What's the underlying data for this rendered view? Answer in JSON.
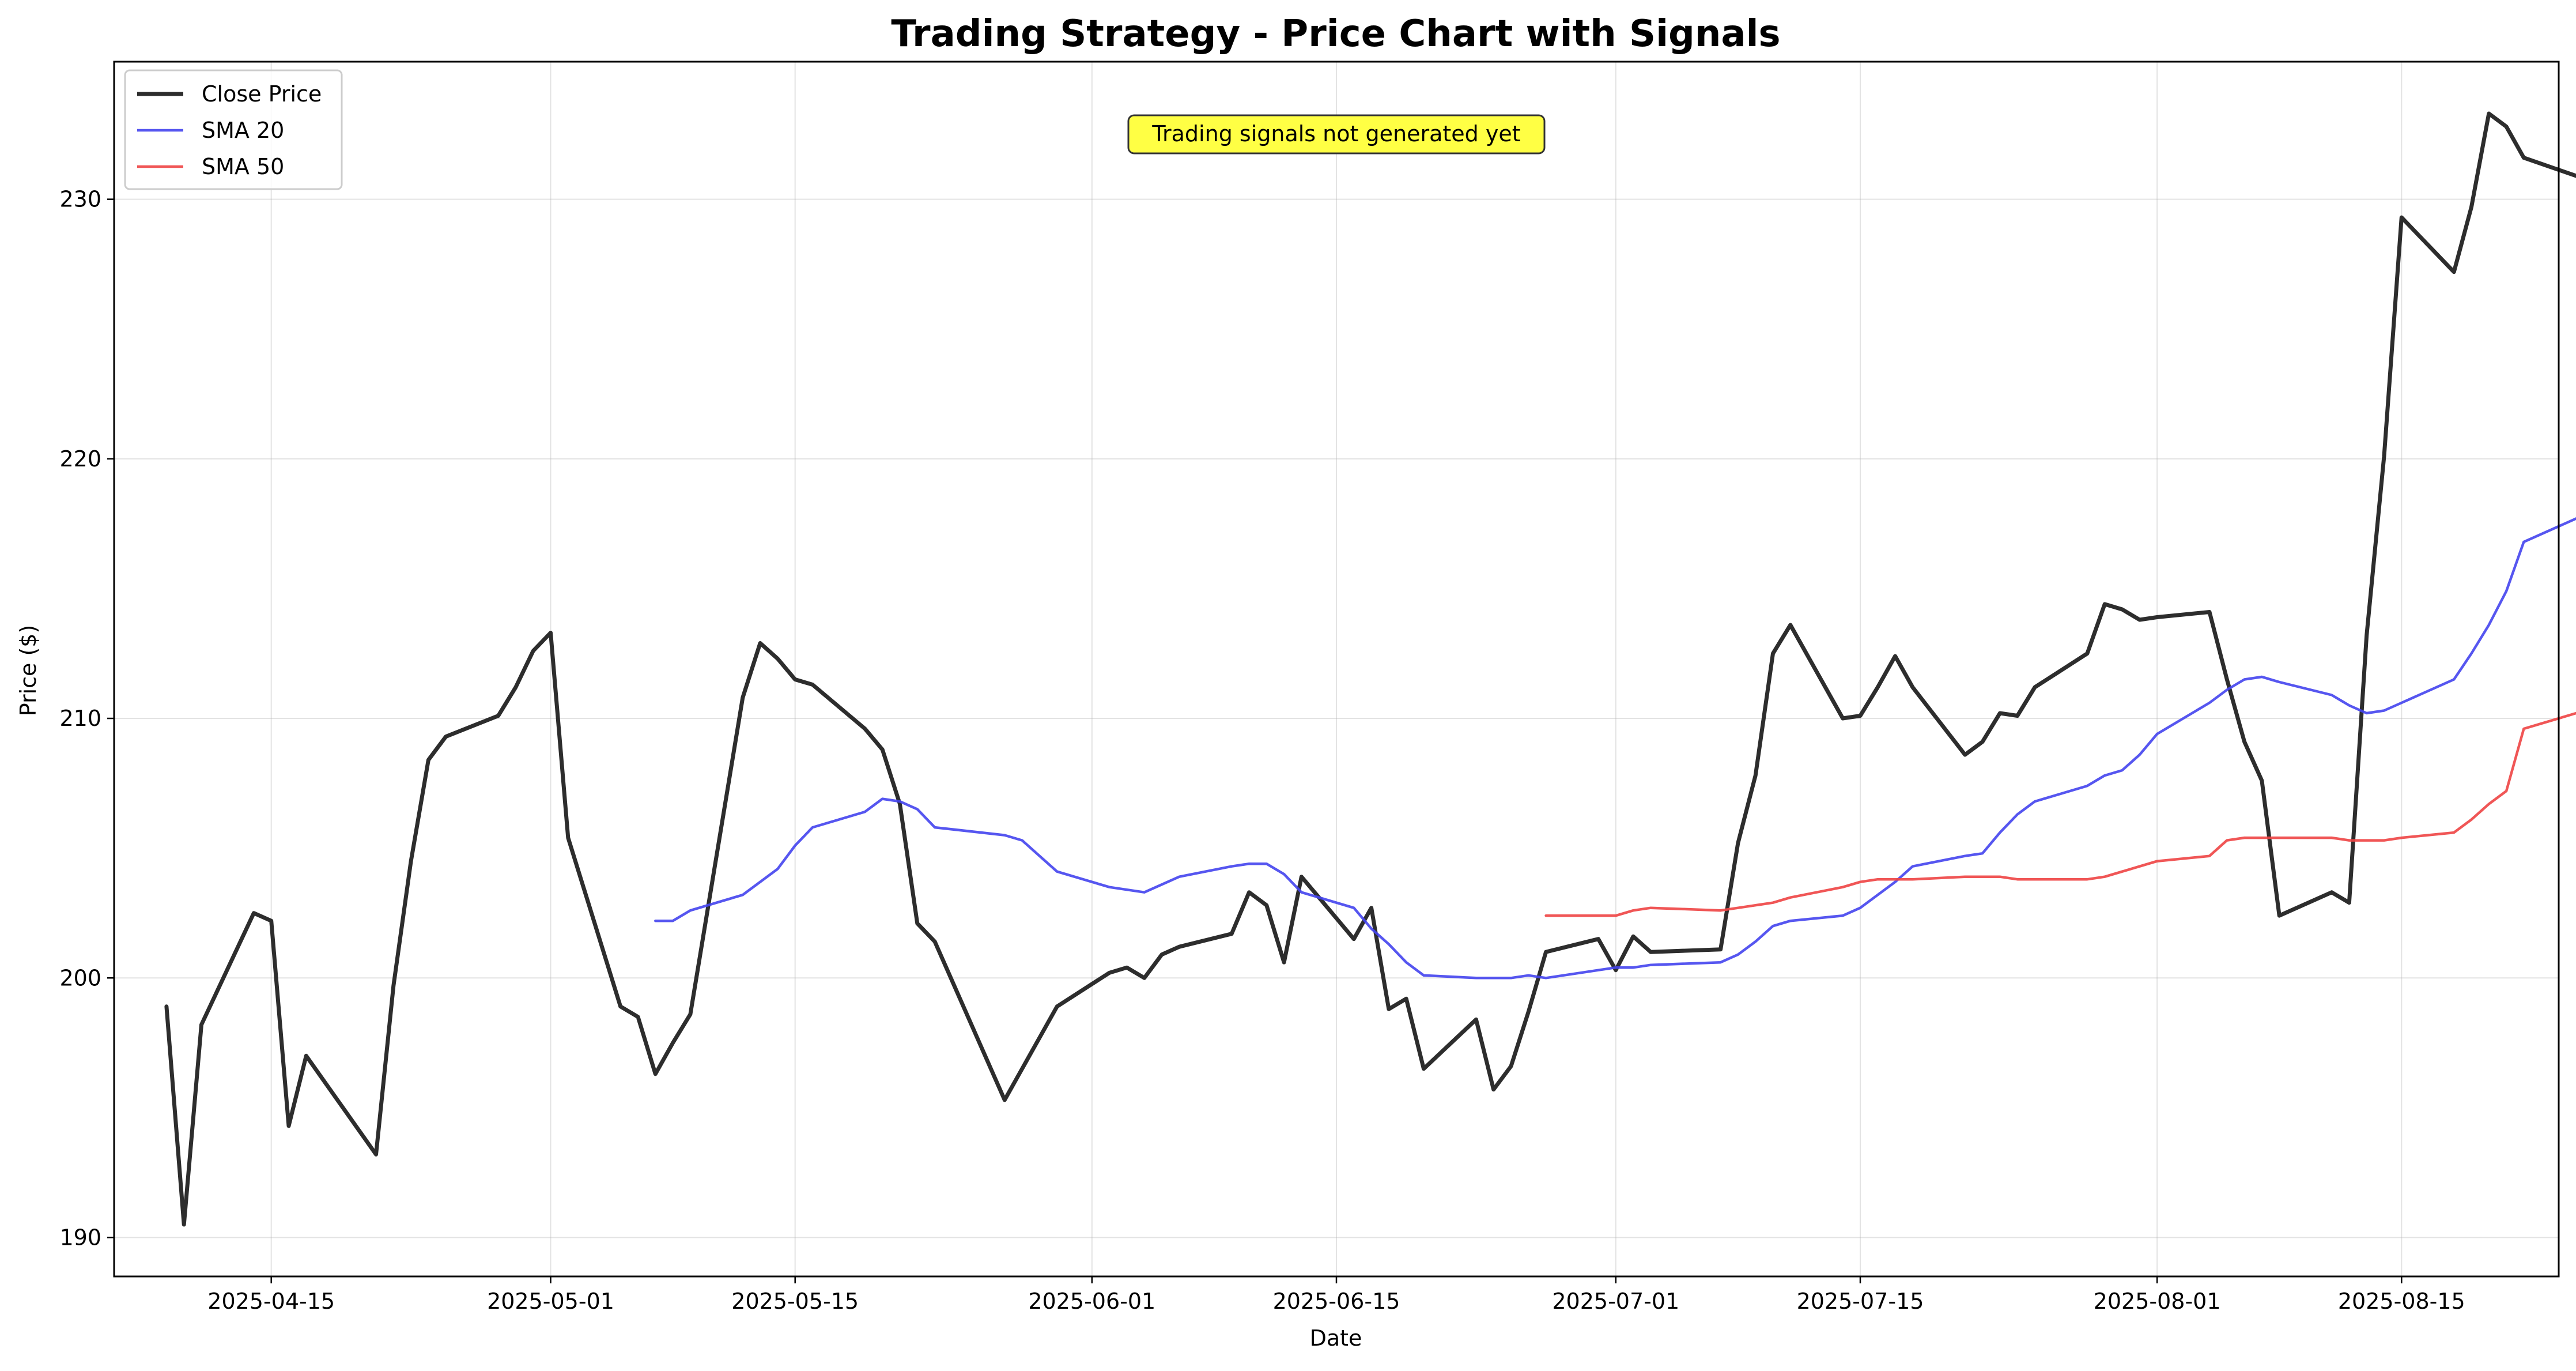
{
  "chart_data": {
    "type": "line",
    "title": "Trading Strategy - Price Chart with Signals",
    "xlabel": "Date",
    "ylabel": "Price ($)",
    "ylim": [
      188.5,
      235.3
    ],
    "xlim": [
      "2025-04-06",
      "2025-08-24"
    ],
    "grid": true,
    "legend_position": "top-left",
    "annotation": "Trading signals not generated yet",
    "x_ticks": [
      "2025-04-15",
      "2025-05-01",
      "2025-05-15",
      "2025-06-01",
      "2025-06-15",
      "2025-07-01",
      "2025-07-15",
      "2025-08-01",
      "2025-08-15"
    ],
    "y_ticks": [
      190,
      200,
      210,
      220,
      230
    ],
    "series": [
      {
        "name": "Close Price",
        "color": "#222222",
        "points": [
          [
            "2025-04-09",
            198.9
          ],
          [
            "2025-04-10",
            190.5
          ],
          [
            "2025-04-11",
            198.2
          ],
          [
            "2025-04-14",
            202.5
          ],
          [
            "2025-04-15",
            202.2
          ],
          [
            "2025-04-16",
            194.3
          ],
          [
            "2025-04-17",
            197.0
          ],
          [
            "2025-04-21",
            193.2
          ],
          [
            "2025-04-22",
            199.7
          ],
          [
            "2025-04-23",
            204.5
          ],
          [
            "2025-04-24",
            208.4
          ],
          [
            "2025-04-25",
            209.3
          ],
          [
            "2025-04-28",
            210.1
          ],
          [
            "2025-04-29",
            211.2
          ],
          [
            "2025-04-30",
            212.6
          ],
          [
            "2025-05-01",
            213.3
          ],
          [
            "2025-05-02",
            205.4
          ],
          [
            "2025-05-05",
            198.9
          ],
          [
            "2025-05-06",
            198.5
          ],
          [
            "2025-05-07",
            196.3
          ],
          [
            "2025-05-08",
            197.5
          ],
          [
            "2025-05-09",
            198.6
          ],
          [
            "2025-05-12",
            210.8
          ],
          [
            "2025-05-13",
            212.9
          ],
          [
            "2025-05-14",
            212.3
          ],
          [
            "2025-05-15",
            211.5
          ],
          [
            "2025-05-16",
            211.3
          ],
          [
            "2025-05-19",
            209.6
          ],
          [
            "2025-05-20",
            208.8
          ],
          [
            "2025-05-21",
            206.7
          ],
          [
            "2025-05-22",
            202.1
          ],
          [
            "2025-05-23",
            201.4
          ],
          [
            "2025-05-27",
            195.3
          ],
          [
            "2025-05-28",
            196.5
          ],
          [
            "2025-05-29",
            197.7
          ],
          [
            "2025-05-30",
            198.9
          ],
          [
            "2025-06-02",
            200.2
          ],
          [
            "2025-06-03",
            200.4
          ],
          [
            "2025-06-04",
            200.0
          ],
          [
            "2025-06-05",
            200.9
          ],
          [
            "2025-06-06",
            201.2
          ],
          [
            "2025-06-09",
            201.7
          ],
          [
            "2025-06-10",
            203.3
          ],
          [
            "2025-06-11",
            202.8
          ],
          [
            "2025-06-12",
            200.6
          ],
          [
            "2025-06-13",
            203.9
          ],
          [
            "2025-06-16",
            201.5
          ],
          [
            "2025-06-17",
            202.7
          ],
          [
            "2025-06-18",
            198.8
          ],
          [
            "2025-06-19",
            199.2
          ],
          [
            "2025-06-20",
            196.5
          ],
          [
            "2025-06-23",
            198.4
          ],
          [
            "2025-06-24",
            195.7
          ],
          [
            "2025-06-25",
            196.6
          ],
          [
            "2025-06-26",
            198.7
          ],
          [
            "2025-06-27",
            201.0
          ],
          [
            "2025-06-30",
            201.5
          ],
          [
            "2025-07-01",
            200.3
          ],
          [
            "2025-07-02",
            201.6
          ],
          [
            "2025-07-03",
            201.0
          ],
          [
            "2025-07-07",
            201.1
          ],
          [
            "2025-07-08",
            205.2
          ],
          [
            "2025-07-09",
            207.8
          ],
          [
            "2025-07-10",
            212.5
          ],
          [
            "2025-07-11",
            213.6
          ],
          [
            "2025-07-14",
            210.0
          ],
          [
            "2025-07-15",
            210.1
          ],
          [
            "2025-07-16",
            211.2
          ],
          [
            "2025-07-17",
            212.4
          ],
          [
            "2025-07-18",
            211.2
          ],
          [
            "2025-07-21",
            208.6
          ],
          [
            "2025-07-22",
            209.1
          ],
          [
            "2025-07-23",
            210.2
          ],
          [
            "2025-07-24",
            210.1
          ],
          [
            "2025-07-25",
            211.2
          ],
          [
            "2025-07-28",
            212.5
          ],
          [
            "2025-07-29",
            214.4
          ],
          [
            "2025-07-30",
            214.2
          ],
          [
            "2025-07-31",
            213.8
          ],
          [
            "2025-08-01",
            213.9
          ],
          [
            "2025-08-04",
            214.1
          ],
          [
            "2025-08-05",
            211.5
          ],
          [
            "2025-08-06",
            209.1
          ],
          [
            "2025-08-07",
            207.6
          ],
          [
            "2025-08-08",
            202.4
          ],
          [
            "2025-08-11",
            203.3
          ],
          [
            "2025-08-12",
            202.9
          ],
          [
            "2025-08-13",
            213.2
          ],
          [
            "2025-08-14",
            220.1
          ],
          [
            "2025-08-15",
            229.3
          ],
          [
            "2025-08-18",
            227.2
          ],
          [
            "2025-08-19",
            229.7
          ],
          [
            "2025-08-20",
            233.3
          ],
          [
            "2025-08-21",
            232.8
          ],
          [
            "2025-08-22",
            231.6
          ],
          [
            "2025-08-25",
            230.9
          ]
        ]
      },
      {
        "name": "SMA 20",
        "color": "#4444ee",
        "points": [
          [
            "2025-05-07",
            202.2
          ],
          [
            "2025-05-08",
            202.2
          ],
          [
            "2025-05-09",
            202.6
          ],
          [
            "2025-05-12",
            203.2
          ],
          [
            "2025-05-13",
            203.7
          ],
          [
            "2025-05-14",
            204.2
          ],
          [
            "2025-05-15",
            205.1
          ],
          [
            "2025-05-16",
            205.8
          ],
          [
            "2025-05-19",
            206.4
          ],
          [
            "2025-05-20",
            206.9
          ],
          [
            "2025-05-21",
            206.8
          ],
          [
            "2025-05-22",
            206.5
          ],
          [
            "2025-05-23",
            205.8
          ],
          [
            "2025-05-27",
            205.5
          ],
          [
            "2025-05-28",
            205.3
          ],
          [
            "2025-05-29",
            204.7
          ],
          [
            "2025-05-30",
            204.1
          ],
          [
            "2025-06-02",
            203.5
          ],
          [
            "2025-06-03",
            203.4
          ],
          [
            "2025-06-04",
            203.3
          ],
          [
            "2025-06-05",
            203.6
          ],
          [
            "2025-06-06",
            203.9
          ],
          [
            "2025-06-09",
            204.3
          ],
          [
            "2025-06-10",
            204.4
          ],
          [
            "2025-06-11",
            204.4
          ],
          [
            "2025-06-12",
            204.0
          ],
          [
            "2025-06-13",
            203.3
          ],
          [
            "2025-06-16",
            202.7
          ],
          [
            "2025-06-17",
            201.9
          ],
          [
            "2025-06-18",
            201.3
          ],
          [
            "2025-06-19",
            200.6
          ],
          [
            "2025-06-20",
            200.1
          ],
          [
            "2025-06-23",
            200.0
          ],
          [
            "2025-06-24",
            200.0
          ],
          [
            "2025-06-25",
            200.0
          ],
          [
            "2025-06-26",
            200.1
          ],
          [
            "2025-06-27",
            200.0
          ],
          [
            "2025-06-30",
            200.3
          ],
          [
            "2025-07-01",
            200.4
          ],
          [
            "2025-07-02",
            200.4
          ],
          [
            "2025-07-03",
            200.5
          ],
          [
            "2025-07-07",
            200.6
          ],
          [
            "2025-07-08",
            200.9
          ],
          [
            "2025-07-09",
            201.4
          ],
          [
            "2025-07-10",
            202.0
          ],
          [
            "2025-07-11",
            202.2
          ],
          [
            "2025-07-14",
            202.4
          ],
          [
            "2025-07-15",
            202.7
          ],
          [
            "2025-07-16",
            203.2
          ],
          [
            "2025-07-17",
            203.7
          ],
          [
            "2025-07-18",
            204.3
          ],
          [
            "2025-07-21",
            204.7
          ],
          [
            "2025-07-22",
            204.8
          ],
          [
            "2025-07-23",
            205.6
          ],
          [
            "2025-07-24",
            206.3
          ],
          [
            "2025-07-25",
            206.8
          ],
          [
            "2025-07-28",
            207.4
          ],
          [
            "2025-07-29",
            207.8
          ],
          [
            "2025-07-30",
            208.0
          ],
          [
            "2025-07-31",
            208.6
          ],
          [
            "2025-08-01",
            209.4
          ],
          [
            "2025-08-04",
            210.6
          ],
          [
            "2025-08-05",
            211.1
          ],
          [
            "2025-08-06",
            211.5
          ],
          [
            "2025-08-07",
            211.6
          ],
          [
            "2025-08-08",
            211.4
          ],
          [
            "2025-08-11",
            210.9
          ],
          [
            "2025-08-12",
            210.5
          ],
          [
            "2025-08-13",
            210.2
          ],
          [
            "2025-08-14",
            210.3
          ],
          [
            "2025-08-15",
            210.6
          ],
          [
            "2025-08-18",
            211.5
          ],
          [
            "2025-08-19",
            212.5
          ],
          [
            "2025-08-20",
            213.6
          ],
          [
            "2025-08-21",
            214.9
          ],
          [
            "2025-08-22",
            216.8
          ],
          [
            "2025-08-25",
            217.7
          ]
        ]
      },
      {
        "name": "SMA 50",
        "color": "#ee4444",
        "points": [
          [
            "2025-06-27",
            202.4
          ],
          [
            "2025-06-30",
            202.4
          ],
          [
            "2025-07-01",
            202.4
          ],
          [
            "2025-07-02",
            202.6
          ],
          [
            "2025-07-03",
            202.7
          ],
          [
            "2025-07-07",
            202.6
          ],
          [
            "2025-07-08",
            202.7
          ],
          [
            "2025-07-09",
            202.8
          ],
          [
            "2025-07-10",
            202.9
          ],
          [
            "2025-07-11",
            203.1
          ],
          [
            "2025-07-14",
            203.5
          ],
          [
            "2025-07-15",
            203.7
          ],
          [
            "2025-07-16",
            203.8
          ],
          [
            "2025-07-17",
            203.8
          ],
          [
            "2025-07-18",
            203.8
          ],
          [
            "2025-07-21",
            203.9
          ],
          [
            "2025-07-22",
            203.9
          ],
          [
            "2025-07-23",
            203.9
          ],
          [
            "2025-07-24",
            203.8
          ],
          [
            "2025-07-25",
            203.8
          ],
          [
            "2025-07-28",
            203.8
          ],
          [
            "2025-07-29",
            203.9
          ],
          [
            "2025-07-30",
            204.1
          ],
          [
            "2025-07-31",
            204.3
          ],
          [
            "2025-08-01",
            204.5
          ],
          [
            "2025-08-04",
            204.7
          ],
          [
            "2025-08-05",
            205.3
          ],
          [
            "2025-08-06",
            205.4
          ],
          [
            "2025-08-07",
            205.4
          ],
          [
            "2025-08-08",
            205.4
          ],
          [
            "2025-08-11",
            205.4
          ],
          [
            "2025-08-12",
            205.3
          ],
          [
            "2025-08-13",
            205.3
          ],
          [
            "2025-08-14",
            205.3
          ],
          [
            "2025-08-15",
            205.4
          ],
          [
            "2025-08-18",
            205.6
          ],
          [
            "2025-08-19",
            206.1
          ],
          [
            "2025-08-20",
            206.7
          ],
          [
            "2025-08-21",
            207.2
          ],
          [
            "2025-08-22",
            209.6
          ],
          [
            "2025-08-25",
            210.2
          ]
        ]
      }
    ]
  }
}
